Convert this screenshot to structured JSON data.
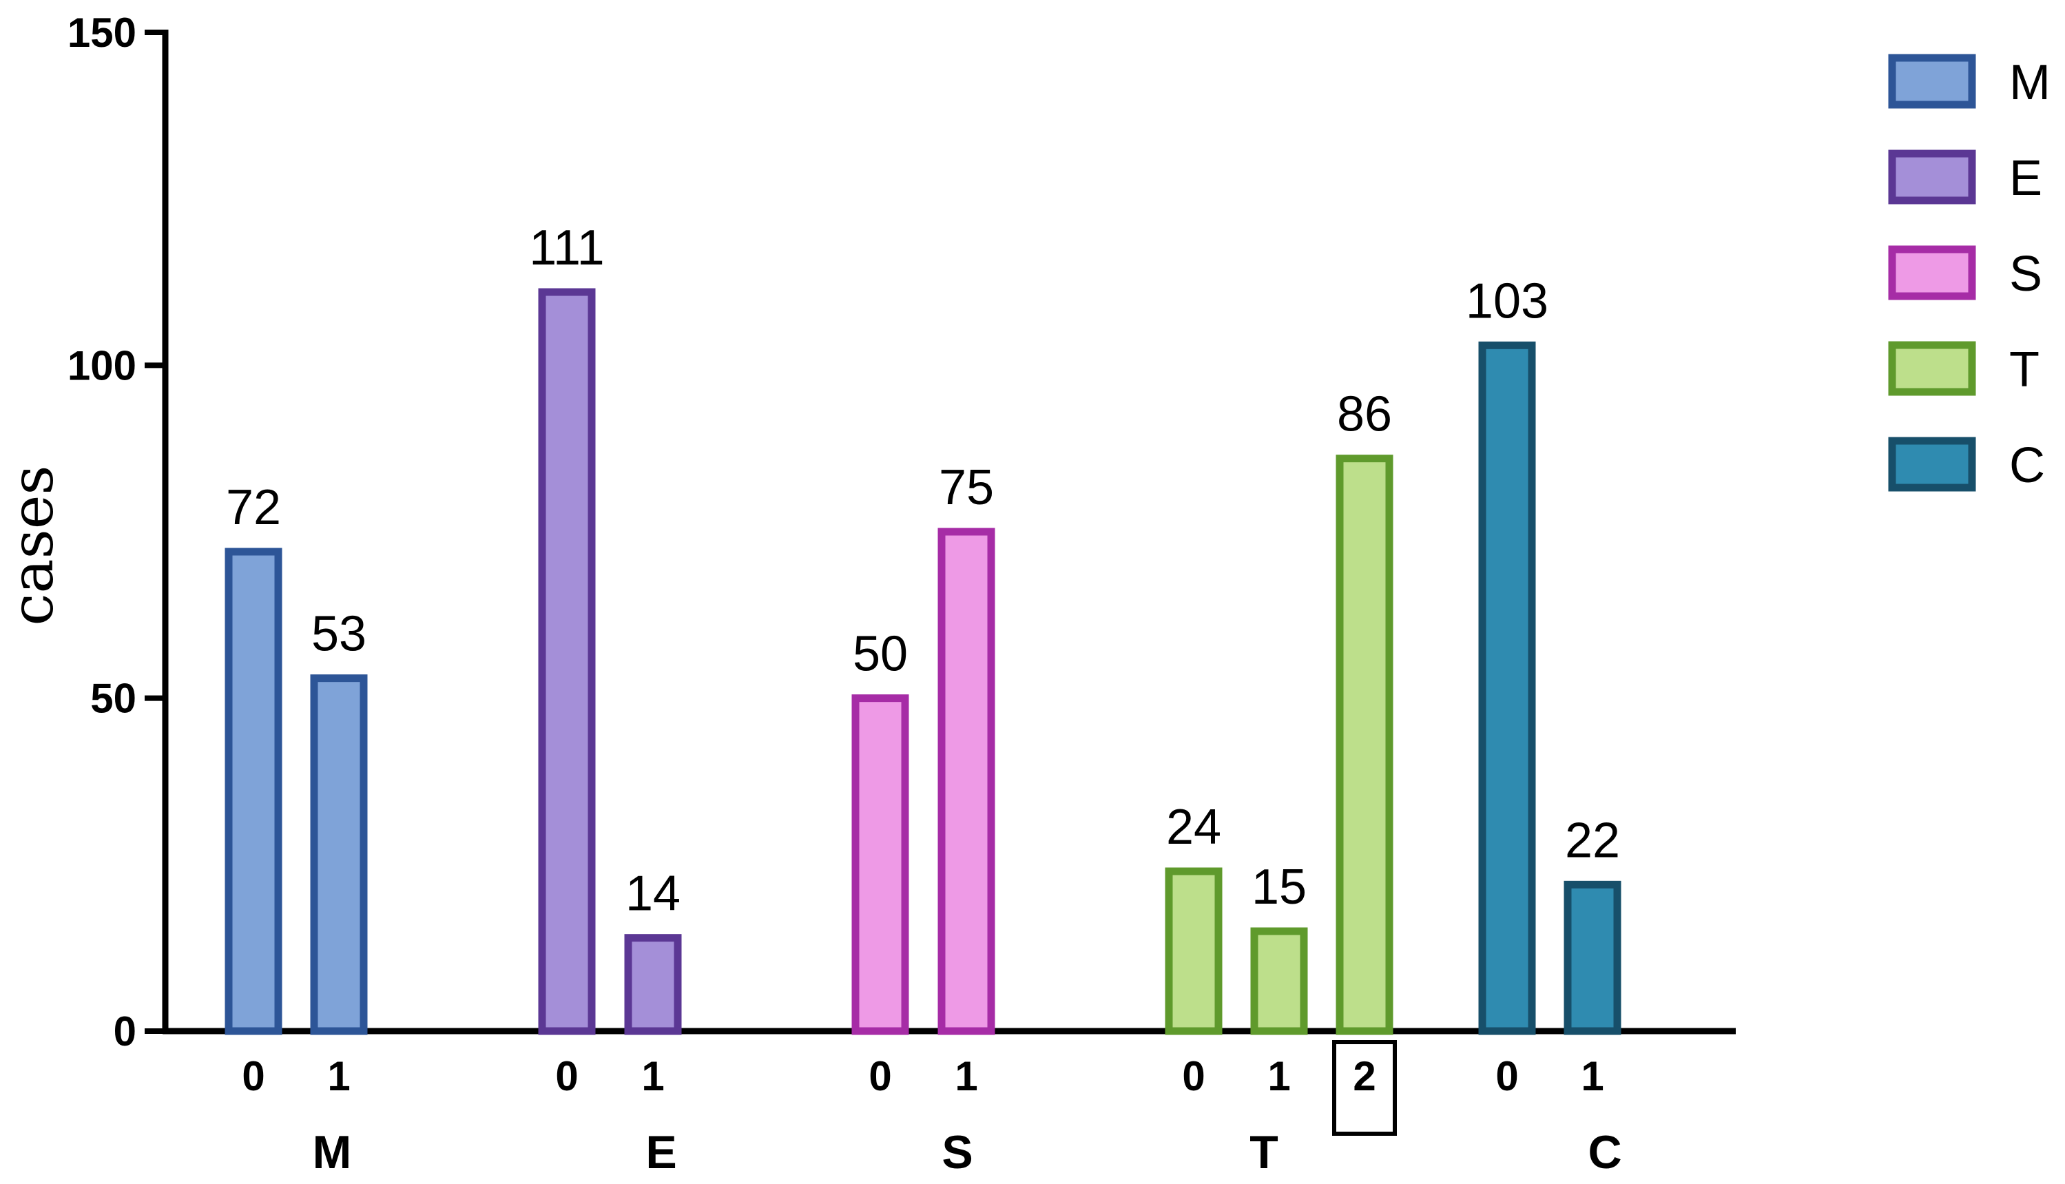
{
  "chart_data": {
    "type": "bar",
    "ylabel": "cases",
    "ylim": [
      0,
      150
    ],
    "yticks": [
      "0",
      "50",
      "100",
      "150"
    ],
    "legend_position": "right",
    "groups": [
      {
        "name": "M",
        "fill": "#7fa3d8",
        "stroke": "#2d5597",
        "bars": [
          {
            "x": "0",
            "value": 72
          },
          {
            "x": "1",
            "value": 53
          }
        ]
      },
      {
        "name": "E",
        "fill": "#a48fd8",
        "stroke": "#5b3794",
        "bars": [
          {
            "x": "0",
            "value": 111
          },
          {
            "x": "1",
            "value": 14
          }
        ]
      },
      {
        "name": "S",
        "fill": "#ee9ae6",
        "stroke": "#a62ca6",
        "bars": [
          {
            "x": "0",
            "value": 50
          },
          {
            "x": "1",
            "value": 75
          }
        ]
      },
      {
        "name": "T",
        "fill": "#bddf8b",
        "stroke": "#5f9a2c",
        "bars": [
          {
            "x": "0",
            "value": 24
          },
          {
            "x": "1",
            "value": 15
          },
          {
            "x": "2",
            "value": 86,
            "boxed": true
          }
        ]
      },
      {
        "name": "C",
        "fill": "#2f8bb0",
        "stroke": "#174f6a",
        "bars": [
          {
            "x": "0",
            "value": 103
          },
          {
            "x": "1",
            "value": 22
          }
        ]
      }
    ],
    "legend": [
      "M",
      "E",
      "S",
      "T",
      "C"
    ]
  }
}
